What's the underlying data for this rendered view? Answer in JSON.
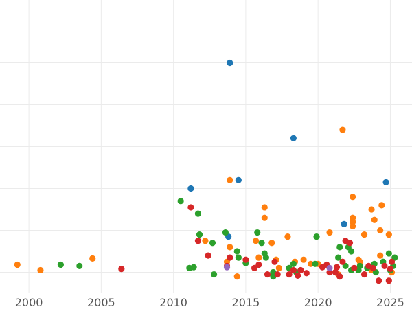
{
  "chart_data": {
    "type": "scatter",
    "title": "",
    "xlabel": "",
    "ylabel": "",
    "xlim": [
      1998,
      2026.5
    ],
    "ylim": [
      0,
      7
    ],
    "x_ticks": [
      2000,
      2005,
      2010,
      2015,
      2020,
      2025
    ],
    "x_tick_labels": [
      "2000",
      "2005",
      "2010",
      "2015",
      "2020",
      "2025"
    ],
    "y_gridlines": [
      0.5,
      1.5,
      2.5,
      3.5,
      4.5,
      5.5,
      6.5
    ],
    "y_tick_labels": [],
    "grid": true,
    "legend": "none",
    "series": [
      {
        "color": "#1f77b4",
        "points": [
          [
            2013.9,
            5.5
          ],
          [
            2018.3,
            3.7
          ],
          [
            2011.2,
            2.5
          ],
          [
            2014.5,
            2.7
          ],
          [
            2024.7,
            2.65
          ],
          [
            2013.8,
            1.35
          ],
          [
            2021.8,
            1.65
          ]
        ]
      },
      {
        "color": "#ff7f0e",
        "points": [
          [
            1999.2,
            0.68
          ],
          [
            2000.8,
            0.55
          ],
          [
            2004.4,
            0.83
          ],
          [
            2013.9,
            2.7
          ],
          [
            2021.7,
            3.9
          ],
          [
            2016.3,
            2.05
          ],
          [
            2016.3,
            1.8
          ],
          [
            2022.4,
            2.3
          ],
          [
            2022.4,
            1.7
          ],
          [
            2022.4,
            1.6
          ],
          [
            2022.4,
            1.8
          ],
          [
            2023.2,
            1.4
          ],
          [
            2023.7,
            2.0
          ],
          [
            2023.9,
            1.75
          ],
          [
            2024.4,
            2.1
          ],
          [
            2024.3,
            1.5
          ],
          [
            2024.9,
            1.4
          ],
          [
            2017.9,
            1.35
          ],
          [
            2020.8,
            1.45
          ],
          [
            2015.7,
            1.25
          ],
          [
            2016.8,
            1.2
          ],
          [
            2012.2,
            1.25
          ],
          [
            2013.9,
            1.1
          ],
          [
            2014.4,
            0.4
          ],
          [
            2015.9,
            0.85
          ],
          [
            2017.1,
            0.8
          ],
          [
            2017.3,
            0.6
          ],
          [
            2018.4,
            0.75
          ],
          [
            2019.0,
            0.8
          ],
          [
            2019.5,
            0.7
          ],
          [
            2020.0,
            0.7
          ],
          [
            2021.4,
            0.45
          ],
          [
            2022.8,
            0.8
          ],
          [
            2023.7,
            0.55
          ],
          [
            2024.3,
            0.9
          ],
          [
            2025.1,
            0.5
          ],
          [
            2013.7,
            0.75
          ],
          [
            2022.9,
            0.75
          ]
        ]
      },
      {
        "color": "#2ca02c",
        "points": [
          [
            2002.2,
            0.68
          ],
          [
            2003.5,
            0.65
          ],
          [
            2010.5,
            2.2
          ],
          [
            2011.7,
            1.9
          ],
          [
            2011.8,
            1.4
          ],
          [
            2012.7,
            1.2
          ],
          [
            2011.1,
            0.6
          ],
          [
            2011.4,
            0.62
          ],
          [
            2012.8,
            0.45
          ],
          [
            2013.6,
            1.45
          ],
          [
            2014.4,
            1.0
          ],
          [
            2014.5,
            0.85
          ],
          [
            2015.0,
            0.72
          ],
          [
            2015.8,
            1.45
          ],
          [
            2016.1,
            1.2
          ],
          [
            2016.3,
            0.95
          ],
          [
            2016.4,
            0.85
          ],
          [
            2016.9,
            0.5
          ],
          [
            2016.9,
            0.4
          ],
          [
            2018.0,
            0.6
          ],
          [
            2018.3,
            0.7
          ],
          [
            2018.5,
            0.5
          ],
          [
            2019.9,
            1.35
          ],
          [
            2019.8,
            0.7
          ],
          [
            2021.4,
            0.85
          ],
          [
            2021.5,
            1.1
          ],
          [
            2022.1,
            1.1
          ],
          [
            2022.3,
            1.0
          ],
          [
            2021.9,
            0.65
          ],
          [
            2022.3,
            0.55
          ],
          [
            2022.8,
            0.55
          ],
          [
            2022.9,
            0.65
          ],
          [
            2023.4,
            0.6
          ],
          [
            2023.9,
            0.7
          ],
          [
            2024.0,
            0.5
          ],
          [
            2024.5,
            0.75
          ],
          [
            2024.9,
            0.95
          ],
          [
            2025.0,
            0.55
          ],
          [
            2025.2,
            0.65
          ],
          [
            2025.3,
            0.85
          ]
        ]
      },
      {
        "color": "#d62728",
        "points": [
          [
            2006.4,
            0.58
          ],
          [
            2011.2,
            2.05
          ],
          [
            2011.7,
            1.25
          ],
          [
            2012.4,
            0.9
          ],
          [
            2013.7,
            0.65
          ],
          [
            2013.9,
            0.85
          ],
          [
            2015.0,
            0.8
          ],
          [
            2015.6,
            0.6
          ],
          [
            2015.9,
            0.68
          ],
          [
            2016.5,
            0.45
          ],
          [
            2017.0,
            0.75
          ],
          [
            2017.2,
            0.45
          ],
          [
            2018.0,
            0.45
          ],
          [
            2018.3,
            0.55
          ],
          [
            2018.6,
            0.42
          ],
          [
            2018.8,
            0.55
          ],
          [
            2019.2,
            0.48
          ],
          [
            2020.3,
            0.62
          ],
          [
            2020.6,
            0.68
          ],
          [
            2020.8,
            0.5
          ],
          [
            2021.2,
            0.5
          ],
          [
            2021.3,
            0.62
          ],
          [
            2021.5,
            0.4
          ],
          [
            2021.7,
            0.75
          ],
          [
            2021.9,
            1.25
          ],
          [
            2022.2,
            1.2
          ],
          [
            2022.5,
            0.6
          ],
          [
            2023.2,
            0.45
          ],
          [
            2023.5,
            0.65
          ],
          [
            2023.8,
            0.6
          ],
          [
            2024.2,
            0.3
          ],
          [
            2024.6,
            0.65
          ],
          [
            2024.9,
            0.3
          ],
          [
            2025.0,
            0.58
          ],
          [
            2025.1,
            0.75
          ]
        ]
      },
      {
        "color": "#9467bd",
        "points": [
          [
            2013.7,
            0.62
          ],
          [
            2020.8,
            0.6
          ]
        ]
      }
    ]
  }
}
